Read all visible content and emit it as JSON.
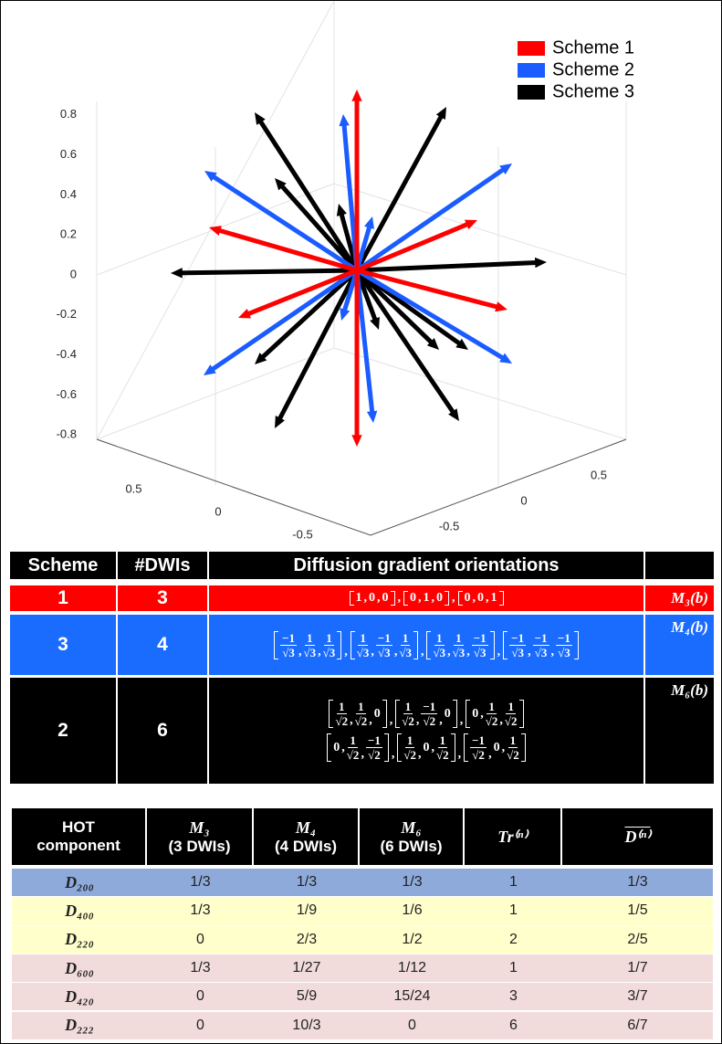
{
  "plot": {
    "legend": [
      {
        "name": "Scheme 1",
        "color": "#ff0000"
      },
      {
        "name": "Scheme 2",
        "color": "#1a5cff"
      },
      {
        "name": "Scheme 3",
        "color": "#000000"
      }
    ],
    "zticks": [
      0.8,
      0.6,
      0.4,
      0.2,
      0,
      -0.2,
      -0.4,
      -0.6,
      -0.8
    ],
    "xticks": [
      0.5,
      0,
      -0.5
    ],
    "yticks": [
      0.5,
      0,
      -0.5
    ]
  },
  "table1": {
    "header": [
      "Scheme",
      "#DWIs",
      "Diffusion gradient orientations"
    ],
    "rows": [
      {
        "scheme": "1",
        "dwis": "3",
        "color": "#ff0000",
        "matrix": "M₃(b)",
        "lines": [
          [
            [
              "1",
              "0",
              "0"
            ],
            [
              "0",
              "1",
              "0"
            ],
            [
              "0",
              "0",
              "1"
            ]
          ]
        ]
      },
      {
        "scheme": "3",
        "dwis": "4",
        "color": "#1a6cff",
        "matrix": "M₄(b)",
        "lines": [
          [
            [
              {
                "num": "−1",
                "den": "√3"
              },
              {
                "num": "1",
                "den": "√3"
              },
              {
                "num": "1",
                "den": "√3"
              }
            ],
            [
              {
                "num": "1",
                "den": "√3"
              },
              {
                "num": "−1",
                "den": "√3"
              },
              {
                "num": "1",
                "den": "√3"
              }
            ],
            [
              {
                "num": "1",
                "den": "√3"
              },
              {
                "num": "1",
                "den": "√3"
              },
              {
                "num": "−1",
                "den": "√3"
              }
            ],
            [
              {
                "num": "−1",
                "den": "√3"
              },
              {
                "num": "−1",
                "den": "√3"
              },
              {
                "num": "−1",
                "den": "√3"
              }
            ]
          ]
        ]
      },
      {
        "scheme": "2",
        "dwis": "6",
        "color": "#000000",
        "matrix": "M₆(b)",
        "lines": [
          [
            [
              {
                "num": "1",
                "den": "√2"
              },
              {
                "num": "1",
                "den": "√2"
              },
              "0"
            ],
            [
              {
                "num": "1",
                "den": "√2"
              },
              {
                "num": "−1",
                "den": "√2"
              },
              "0"
            ],
            [
              "0",
              {
                "num": "1",
                "den": "√2"
              },
              {
                "num": "1",
                "den": "√2"
              }
            ]
          ],
          [
            [
              "0",
              {
                "num": "1",
                "den": "√2"
              },
              {
                "num": "−1",
                "den": "√2"
              }
            ],
            [
              {
                "num": "1",
                "den": "√2"
              },
              "0",
              {
                "num": "1",
                "den": "√2"
              }
            ],
            [
              {
                "num": "−1",
                "den": "√2"
              },
              "0",
              {
                "num": "1",
                "den": "√2"
              }
            ]
          ]
        ]
      }
    ]
  },
  "table2": {
    "header": [
      [
        "HOT",
        "component"
      ],
      [
        "M₃",
        "(3 DWIs)"
      ],
      [
        "M₄",
        "(4 DWIs)"
      ],
      [
        "M₆",
        "(6 DWIs)"
      ],
      [
        "Tr⁽ⁿ⁾"
      ],
      [
        "D⁽ⁿ⁾"
      ]
    ],
    "row_colors": [
      "#8eaadb",
      "#ffffcc",
      "#ffffcc",
      "#f2dcdb",
      "#f2dcdb",
      "#f2dcdb"
    ],
    "rows": [
      [
        "D₂₀₀",
        "1/3",
        "1/3",
        "1/3",
        "1",
        "1/3"
      ],
      [
        "D₄₀₀",
        "1/3",
        "1/9",
        "1/6",
        "1",
        "1/5"
      ],
      [
        "D₂₂₀",
        "0",
        "2/3",
        "1/2",
        "2",
        "2/5"
      ],
      [
        "D₆₀₀",
        "1/3",
        "1/27",
        "1/12",
        "1",
        "1/7"
      ],
      [
        "D₄₂₀",
        "0",
        "5/9",
        "15/24",
        "3",
        "3/7"
      ],
      [
        "D₂₂₂",
        "0",
        "10/3",
        "0",
        "6",
        "6/7"
      ]
    ]
  }
}
